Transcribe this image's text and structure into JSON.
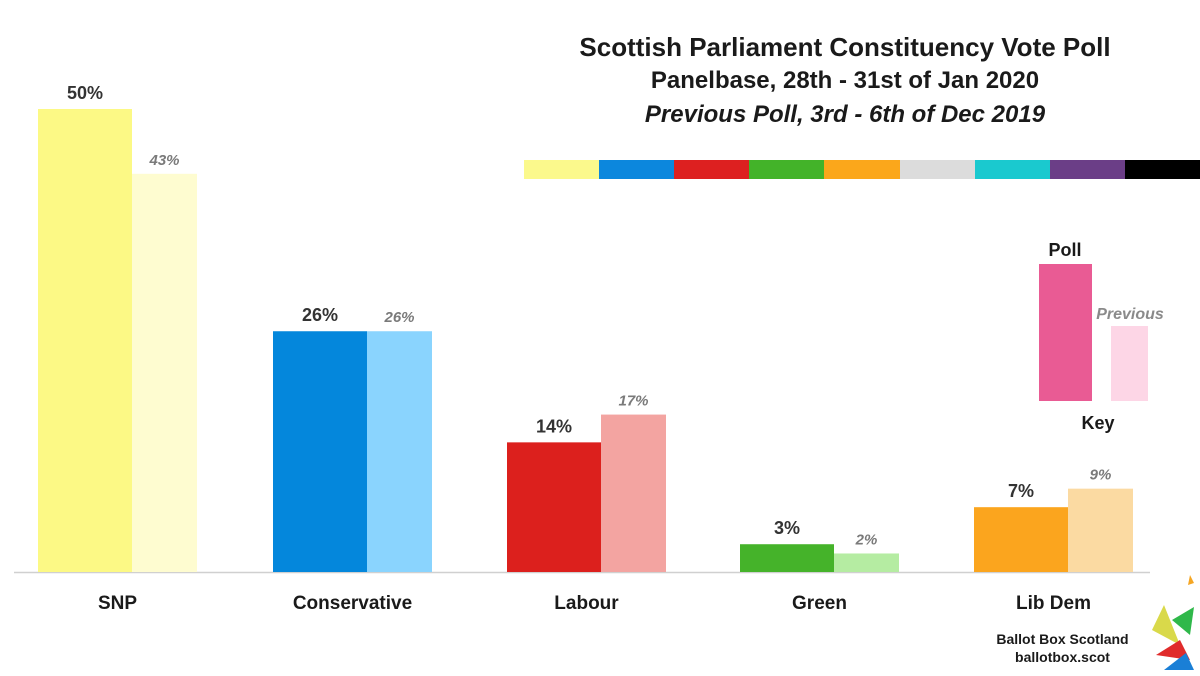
{
  "title": "Scottish Parliament Constituency Vote Poll",
  "subtitle": "Panelbase, 28th - 31st of Jan 2020",
  "previous_label": "Previous Poll, 3rd - 6th of Dec 2019",
  "color_strip": [
    "#fbf98c",
    "#0c87dd",
    "#dd2020",
    "#43b329",
    "#fba71b",
    "#dcdcdc",
    "#1ac9cf",
    "#6b3e87",
    "#000000"
  ],
  "key": {
    "poll_label": "Poll",
    "previous_label": "Previous",
    "key_label": "Key",
    "poll_color": "#e95b94",
    "previous_color": "#fdd6e6"
  },
  "credit": {
    "name": "Ballot Box Scotland",
    "site": "ballotbox.scot"
  },
  "chart_data": {
    "type": "bar",
    "categories": [
      "SNP",
      "Conservative",
      "Labour",
      "Green",
      "Lib Dem"
    ],
    "series": [
      {
        "name": "Poll",
        "values": [
          50,
          26,
          14,
          3,
          7
        ],
        "labels": [
          "50%",
          "26%",
          "14%",
          "3%",
          "7%"
        ],
        "colors": [
          "#fcf985",
          "#0487dc",
          "#dc201d",
          "#45b32a",
          "#fba51e"
        ]
      },
      {
        "name": "Previous",
        "values": [
          43,
          26,
          17,
          2,
          9
        ],
        "labels": [
          "43%",
          "26%",
          "17%",
          "2%",
          "9%"
        ],
        "colors": [
          "#fefcd0",
          "#8ad4fe",
          "#f3a4a1",
          "#b5eca2",
          "#fbdaa2"
        ]
      }
    ],
    "ylim": [
      0,
      50
    ],
    "grid": false,
    "legend": "right"
  }
}
